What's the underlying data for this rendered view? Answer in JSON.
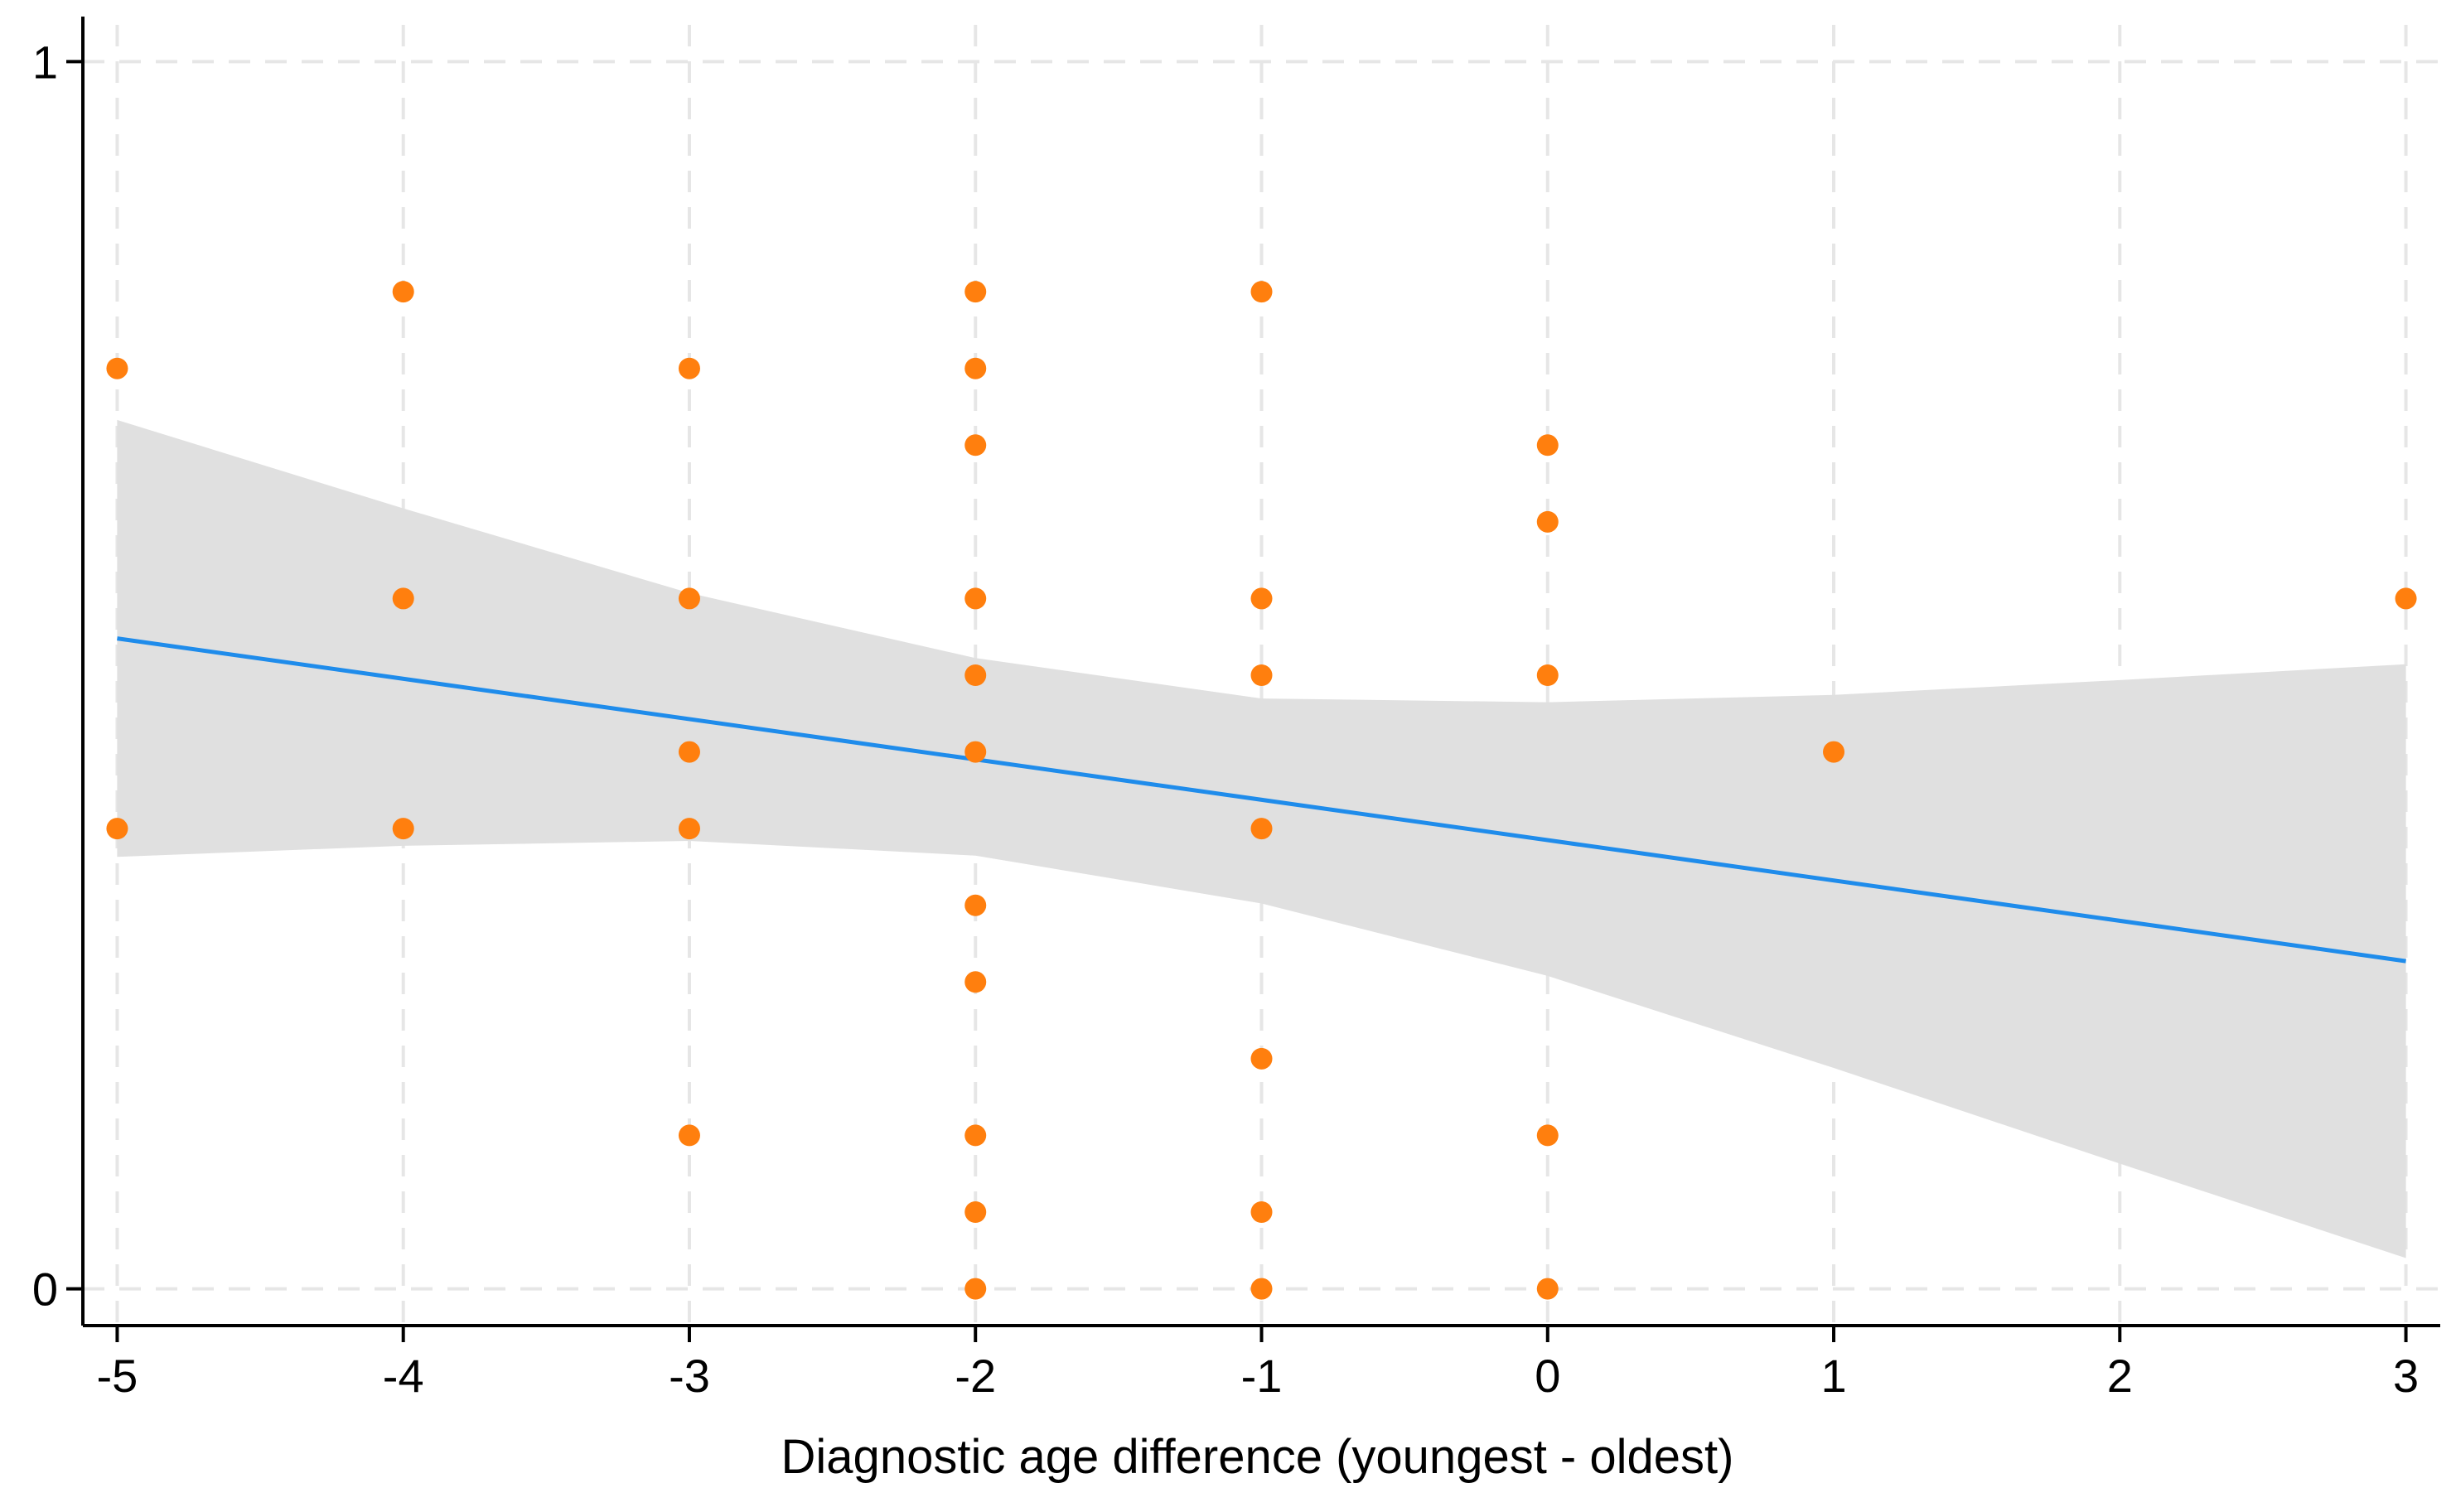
{
  "chart_data": {
    "type": "scatter",
    "title": "",
    "xlabel": "Diagnostic age difference (youngest - oldest)",
    "ylabel": "",
    "xlim": [
      -5.12,
      3.12
    ],
    "ylim": [
      -0.03,
      1.03
    ],
    "x_ticks": [
      -5,
      -4,
      -3,
      -2,
      -1,
      0,
      1,
      2,
      3
    ],
    "x_tick_labels": [
      "-5",
      "-4",
      "-3",
      "-2",
      "-1",
      "0",
      "1",
      "2",
      "3"
    ],
    "y_ticks": [
      0,
      1
    ],
    "y_tick_labels": [
      "0",
      "1"
    ],
    "grid": true,
    "legend": "none",
    "colors": {
      "points": "#ff7f0e",
      "fit_line": "#1f8ceb",
      "ci_band": "#e0e0e0",
      "grid": "#e6e6e6"
    },
    "series": [
      {
        "name": "observations",
        "kind": "scatter",
        "points": [
          {
            "x": -5,
            "y": 0.75
          },
          {
            "x": -5,
            "y": 0.375
          },
          {
            "x": -4,
            "y": 0.8125
          },
          {
            "x": -4,
            "y": 0.5625
          },
          {
            "x": -4,
            "y": 0.375
          },
          {
            "x": -3,
            "y": 0.75
          },
          {
            "x": -3,
            "y": 0.5625
          },
          {
            "x": -3,
            "y": 0.4375
          },
          {
            "x": -3,
            "y": 0.375
          },
          {
            "x": -3,
            "y": 0.125
          },
          {
            "x": -2,
            "y": 0.8125
          },
          {
            "x": -2,
            "y": 0.75
          },
          {
            "x": -2,
            "y": 0.6875
          },
          {
            "x": -2,
            "y": 0.5625
          },
          {
            "x": -2,
            "y": 0.5
          },
          {
            "x": -2,
            "y": 0.4375
          },
          {
            "x": -2,
            "y": 0.3125
          },
          {
            "x": -2,
            "y": 0.25
          },
          {
            "x": -2,
            "y": 0.125
          },
          {
            "x": -2,
            "y": 0.0625
          },
          {
            "x": -2,
            "y": 0
          },
          {
            "x": -1,
            "y": 0.8125
          },
          {
            "x": -1,
            "y": 0.5625
          },
          {
            "x": -1,
            "y": 0.5
          },
          {
            "x": -1,
            "y": 0.375
          },
          {
            "x": -1,
            "y": 0.1875
          },
          {
            "x": -1,
            "y": 0.0625
          },
          {
            "x": -1,
            "y": 0
          },
          {
            "x": 0,
            "y": 0.6875
          },
          {
            "x": 0,
            "y": 0.625
          },
          {
            "x": 0,
            "y": 0.5
          },
          {
            "x": 0,
            "y": 0.125
          },
          {
            "x": 0,
            "y": 0
          },
          {
            "x": 1,
            "y": 0.4375
          },
          {
            "x": 3,
            "y": 0.5625
          }
        ]
      },
      {
        "name": "linear fit",
        "kind": "line",
        "x": [
          -5,
          3
        ],
        "y": [
          0.53,
          0.267
        ]
      },
      {
        "name": "95% CI",
        "kind": "band",
        "x": [
          -5,
          -4,
          -3,
          -2,
          -1,
          0,
          1,
          2,
          3
        ],
        "lower": [
          0.352,
          0.361,
          0.365,
          0.353,
          0.314,
          0.255,
          0.18,
          0.102,
          0.025
        ],
        "upper": [
          0.708,
          0.636,
          0.567,
          0.514,
          0.481,
          0.478,
          0.484,
          0.496,
          0.509
        ]
      }
    ]
  }
}
